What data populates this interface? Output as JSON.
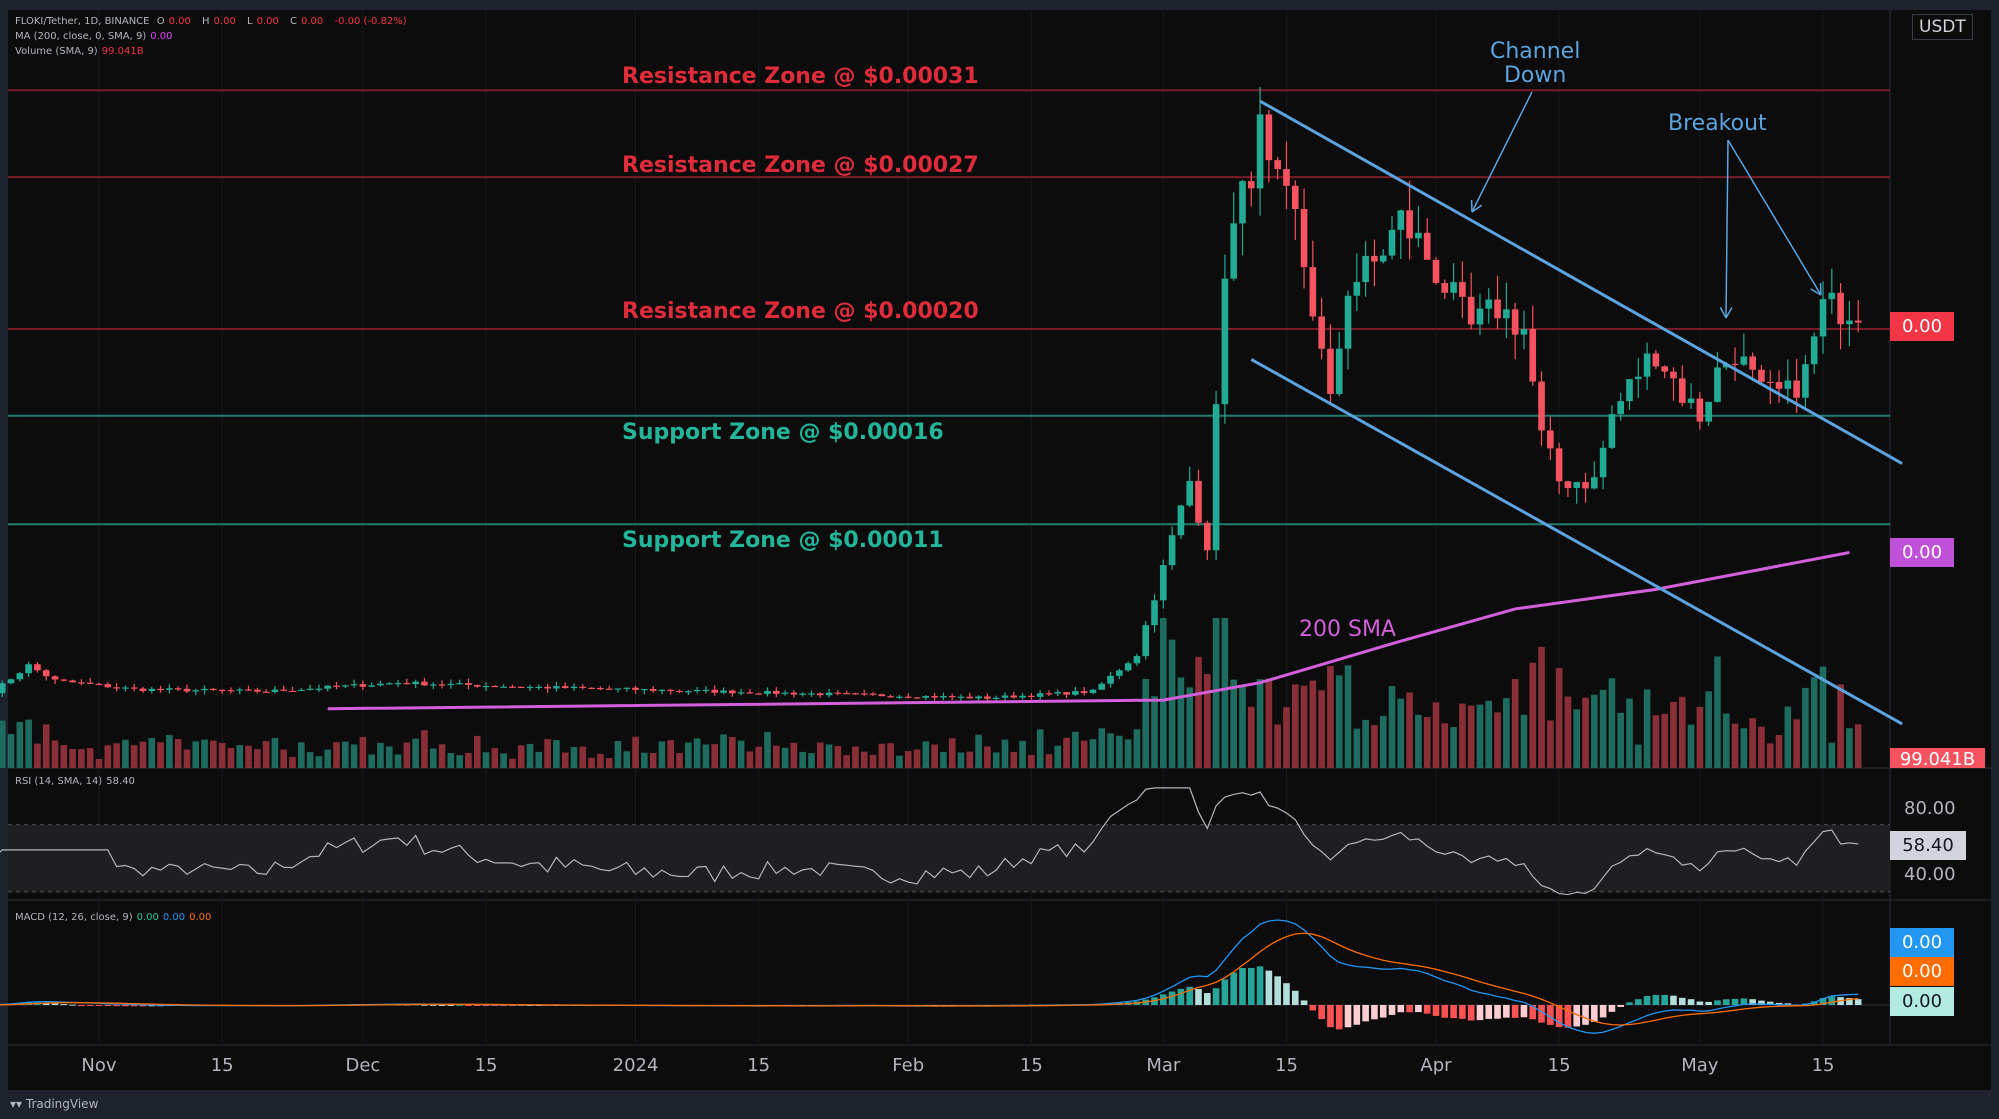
{
  "header": {
    "symbol": "FLOKI/Tether, 1D, BINANCE",
    "ohlc": {
      "o_label": "O",
      "o": "0.00",
      "h_label": "H",
      "h": "0.00",
      "l_label": "L",
      "l": "0.00",
      "c_label": "C",
      "c": "0.00",
      "change": "-0.00 (-0.82%)"
    },
    "ma_label": "MA (200, close, 0, SMA, 9)",
    "ma_value": "0.00",
    "volume_label": "Volume (SMA, 9)",
    "volume_value": "99.041B",
    "currency": "USDT"
  },
  "rsi": {
    "label": "RSI (14, SMA, 14)",
    "value": "58.40",
    "levels": [
      "80.00",
      "40.00"
    ],
    "badge": "58.40"
  },
  "macd": {
    "label": "MACD (12, 26, close, 9)",
    "v1": "0.00",
    "v2": "0.00",
    "v3": "0.00",
    "badges": [
      "0.00",
      "0.00",
      "0.00"
    ]
  },
  "price_badges": {
    "last": "0.00",
    "sma": "0.00",
    "volume": "99.041B"
  },
  "colors": {
    "up": "#22ab94",
    "down": "#f7525f",
    "resistance": "#e02b3a",
    "support": "#22b59a",
    "channel": "#5ba4e0",
    "sma": "#d45fdc",
    "rsi": "#b2b5be",
    "macd": "#2196f3",
    "signal": "#ff6d00"
  },
  "footer": {
    "brand": "TradingView"
  },
  "chart_data": {
    "type": "candlestick",
    "price_scale": "linear",
    "x_ticks": [
      {
        "date": "2023-11-01",
        "label": "Nov"
      },
      {
        "date": "2023-11-15",
        "label": "15"
      },
      {
        "date": "2023-12-01",
        "label": "Dec"
      },
      {
        "date": "2023-12-15",
        "label": "15"
      },
      {
        "date": "2024-01-01",
        "label": "2024"
      },
      {
        "date": "2024-01-15",
        "label": "15"
      },
      {
        "date": "2024-02-01",
        "label": "Feb"
      },
      {
        "date": "2024-02-15",
        "label": "15"
      },
      {
        "date": "2024-03-01",
        "label": "Mar"
      },
      {
        "date": "2024-03-15",
        "label": "15"
      },
      {
        "date": "2024-04-01",
        "label": "Apr"
      },
      {
        "date": "2024-04-15",
        "label": "15"
      },
      {
        "date": "2024-05-01",
        "label": "May"
      },
      {
        "date": "2024-05-15",
        "label": "15"
      }
    ],
    "zones": [
      {
        "label": "Resistance Zone @ $0.00031",
        "price": 0.00031,
        "kind": "resistance"
      },
      {
        "label": "Resistance Zone @ $0.00027",
        "price": 0.00027,
        "kind": "resistance"
      },
      {
        "label": "Resistance Zone @ $0.00020",
        "price": 0.0002,
        "kind": "resistance"
      },
      {
        "label": "Support Zone @ $0.00016",
        "price": 0.00016,
        "kind": "support"
      },
      {
        "label": "Support Zone @ $0.00011",
        "price": 0.00011,
        "kind": "support"
      }
    ],
    "annotations": {
      "channel": "Channel\nDown",
      "breakout": "Breakout",
      "sma": "200 SMA"
    },
    "channel_upper": [
      {
        "date": "2024-03-12",
        "price": 0.000305
      },
      {
        "date": "2024-05-24",
        "price": 0.000138
      }
    ],
    "channel_lower": [
      {
        "date": "2024-03-11",
        "price": 0.000186
      },
      {
        "date": "2024-05-24",
        "price": 1.8e-05
      }
    ],
    "close_keyframes": [
      [
        "2023-10-20",
        3.3e-05
      ],
      [
        "2023-10-24",
        4.5e-05
      ],
      [
        "2023-10-27",
        3.8e-05
      ],
      [
        "2023-11-05",
        3.4e-05
      ],
      [
        "2023-11-20",
        3.3e-05
      ],
      [
        "2023-12-05",
        3.7e-05
      ],
      [
        "2023-12-20",
        3.5e-05
      ],
      [
        "2024-01-10",
        3.3e-05
      ],
      [
        "2024-02-10",
        3e-05
      ],
      [
        "2024-02-22",
        3.3e-05
      ],
      [
        "2024-02-27",
        5e-05
      ],
      [
        "2024-03-01",
        9e-05
      ],
      [
        "2024-03-04",
        0.00013
      ],
      [
        "2024-03-06",
        0.0001
      ],
      [
        "2024-03-07",
        0.00016
      ],
      [
        "2024-03-08",
        0.00023
      ],
      [
        "2024-03-10",
        0.00026
      ],
      [
        "2024-03-12",
        0.00029
      ],
      [
        "2024-03-13",
        0.00027
      ],
      [
        "2024-03-16",
        0.00025
      ],
      [
        "2024-03-18",
        0.00021
      ],
      [
        "2024-03-20",
        0.000165
      ],
      [
        "2024-03-22",
        0.00022
      ],
      [
        "2024-03-25",
        0.00023
      ],
      [
        "2024-03-28",
        0.00025
      ],
      [
        "2024-03-30",
        0.00024
      ],
      [
        "2024-04-02",
        0.00022
      ],
      [
        "2024-04-05",
        0.0002
      ],
      [
        "2024-04-08",
        0.00021
      ],
      [
        "2024-04-11",
        0.0002
      ],
      [
        "2024-04-13",
        0.00015
      ],
      [
        "2024-04-15",
        0.00013
      ],
      [
        "2024-04-19",
        0.00013
      ],
      [
        "2024-04-21",
        0.00016
      ],
      [
        "2024-04-24",
        0.00018
      ],
      [
        "2024-04-26",
        0.00019
      ],
      [
        "2024-04-29",
        0.00017
      ],
      [
        "2024-05-01",
        0.00016
      ],
      [
        "2024-05-03",
        0.00018
      ],
      [
        "2024-05-05",
        0.00019
      ],
      [
        "2024-05-08",
        0.00017
      ],
      [
        "2024-05-11",
        0.00017
      ],
      [
        "2024-05-13",
        0.00018
      ],
      [
        "2024-05-15",
        0.00021
      ],
      [
        "2024-05-19",
        0.00021
      ]
    ],
    "sma200": [
      [
        "2023-11-27",
        2.5e-05
      ],
      [
        "2024-03-01",
        2.9e-05
      ],
      [
        "2024-03-12",
        3.7e-05
      ],
      [
        "2024-03-27",
        5.5e-05
      ],
      [
        "2024-04-10",
        7.1e-05
      ],
      [
        "2024-04-26",
        8e-05
      ],
      [
        "2024-05-18",
        9.7e-05
      ]
    ]
  }
}
